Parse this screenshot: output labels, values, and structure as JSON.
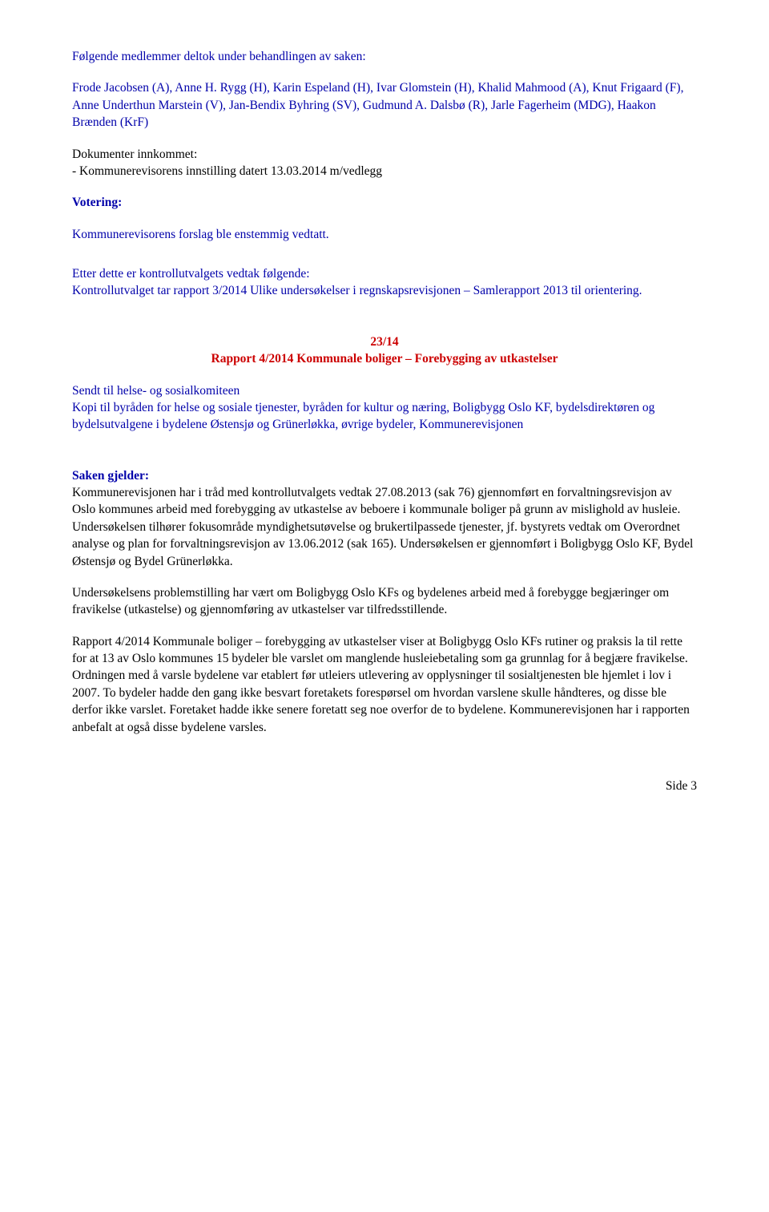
{
  "intro": {
    "line1": "Følgende medlemmer deltok under behandlingen av saken:",
    "members": "Frode Jacobsen (A), Anne H. Rygg (H), Karin Espeland (H), Ivar Glomstein (H), Khalid Mahmood (A), Knut Frigaard (F), Anne Underthun Marstein (V), Jan-Bendix Byhring (SV), Gudmund A. Dalsbø (R), Jarle Fagerheim (MDG), Haakon Brænden (KrF)"
  },
  "dokumenter": {
    "title": "Dokumenter innkommet:",
    "item": " - Kommunerevisorens innstilling datert 13.03.2014 m/vedlegg"
  },
  "votering": {
    "heading": "Votering:",
    "text": "Kommunerevisorens forslag ble enstemmig vedtatt."
  },
  "vedtak": {
    "line1": "Etter dette er kontrollutvalgets vedtak følgende:",
    "line2": "Kontrollutvalget tar rapport 3/2014 Ulike undersøkelser i regnskapsrevisjonen – Samlerapport 2013 til orientering."
  },
  "section23": {
    "number": "23/14",
    "title": "Rapport 4/2014 Kommunale boliger – Forebygging av utkastelser",
    "sendt_til": "Sendt til helse- og sosialkomiteen",
    "kopi": "Kopi til byråden for helse og sosiale tjenester, byråden for kultur og næring, Boligbygg Oslo KF, bydelsdirektøren og bydelsutvalgene i bydelene Østensjø og Grünerløkka, øvrige bydeler, Kommunerevisjonen"
  },
  "saken": {
    "heading": "Saken gjelder:",
    "p1": "Kommunerevisjonen har i tråd med kontrollutvalgets vedtak 27.08.2013 (sak 76) gjennomført en forvaltningsrevisjon av Oslo kommunes arbeid med forebygging av utkastelse av beboere i kommunale boliger på grunn av mislighold av husleie. Undersøkelsen tilhører fokusområde myndighetsutøvelse og brukertilpassede tjenester, jf. bystyrets vedtak om Overordnet analyse og plan for forvaltningsrevisjon av 13.06.2012 (sak 165). Undersøkelsen er gjennomført i Boligbygg Oslo KF, Bydel Østensjø og Bydel Grünerløkka.",
    "p2": "Undersøkelsens problemstilling har vært om Boligbygg Oslo KFs og bydelenes arbeid med å forebygge begjæringer om fravikelse (utkastelse) og gjennomføring av utkastelser var tilfredsstillende.",
    "p3": "Rapport 4/2014 Kommunale boliger – forebygging av utkastelser viser at Boligbygg Oslo KFs rutiner og praksis la til rette for at 13 av Oslo kommunes 15 bydeler ble varslet om manglende husleiebetaling som ga grunnlag for å begjære fravikelse. Ordningen med å varsle bydelene var etablert før utleiers utlevering av opplysninger til sosialtjenesten ble hjemlet i lov i 2007. To bydeler hadde den gang ikke besvart foretakets forespørsel om hvordan varslene skulle håndteres, og disse ble derfor ikke varslet. Foretaket hadde ikke senere foretatt seg noe overfor de to bydelene. Kommunerevisjonen har i rapporten anbefalt at også disse bydelene varsles."
  },
  "footer": "Side 3"
}
